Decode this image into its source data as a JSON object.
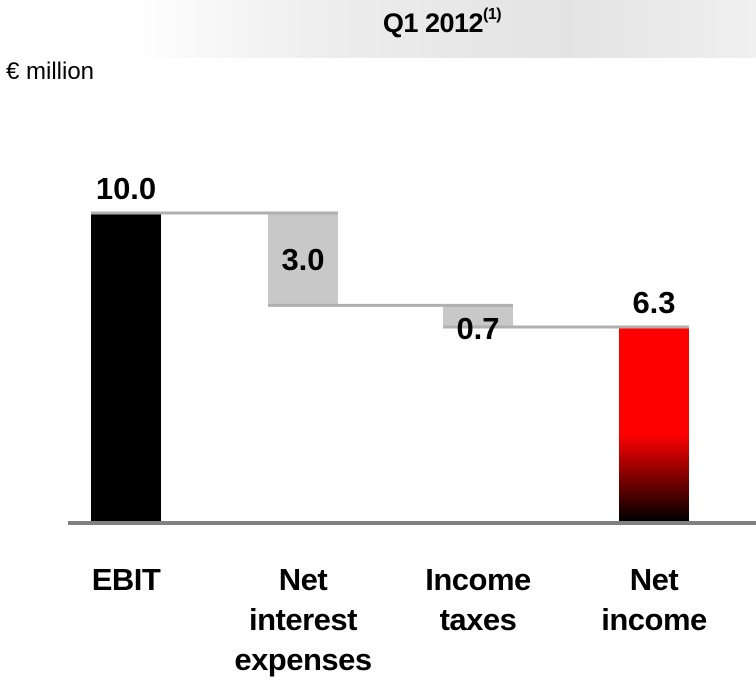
{
  "header": {
    "title": "Q1 2012",
    "title_superscript": "(1)",
    "unit": "€ million"
  },
  "chart_data": {
    "type": "bar",
    "subtype": "waterfall",
    "categories": [
      "EBIT",
      "Net\ninterest\nexpenses",
      "Income\ntaxes",
      "Net\nincome"
    ],
    "values": [
      10.0,
      -3.0,
      -0.7,
      6.3
    ],
    "value_labels": [
      "10.0",
      "3.0",
      "0.7",
      "6.3"
    ],
    "bar_kinds": [
      "total",
      "delta",
      "delta",
      "total"
    ],
    "ylim": [
      0,
      10.0
    ],
    "grid": false,
    "legend": "none",
    "colors": {
      "ebit": "#000000",
      "delta": "#c8c8c8",
      "net_income_top": "#ff0000",
      "net_income_bottom": "#000000",
      "connector": "#b0b0b0",
      "axis": "#808080"
    }
  }
}
